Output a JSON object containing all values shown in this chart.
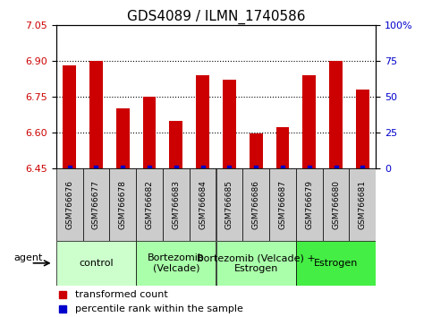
{
  "title": "GDS4089 / ILMN_1740586",
  "samples": [
    "GSM766676",
    "GSM766677",
    "GSM766678",
    "GSM766682",
    "GSM766683",
    "GSM766684",
    "GSM766685",
    "GSM766686",
    "GSM766687",
    "GSM766679",
    "GSM766680",
    "GSM766681"
  ],
  "transformed_count": [
    6.88,
    6.9,
    6.7,
    6.75,
    6.65,
    6.84,
    6.82,
    6.595,
    6.62,
    6.84,
    6.9,
    6.78
  ],
  "percentile_rank": [
    0.42,
    0.45,
    0.27,
    0.31,
    0.27,
    0.38,
    0.35,
    0.27,
    0.35,
    0.38,
    0.42,
    0.34
  ],
  "ymin": 6.45,
  "ymax": 7.05,
  "yticks_left": [
    6.45,
    6.6,
    6.75,
    6.9,
    7.05
  ],
  "yticks_right": [
    0,
    25,
    50,
    75,
    100
  ],
  "group_labels": [
    "control",
    "Bortezomib\n(Velcade)",
    "Bortezomib (Velcade) +\nEstrogen",
    "Estrogen"
  ],
  "group_starts": [
    0,
    3,
    6,
    9
  ],
  "group_ends": [
    3,
    6,
    9,
    12
  ],
  "group_colors": [
    "#ccffcc",
    "#aaffaa",
    "#aaffaa",
    "#44ee44"
  ],
  "bar_color": "#cc0000",
  "dot_color": "#0000cc",
  "bar_width": 0.5,
  "legend_bar_label": "transformed count",
  "legend_dot_label": "percentile rank within the sample",
  "agent_label": "agent",
  "left_tick_color": "#cc0000",
  "right_tick_color": "#0000cc",
  "sample_box_color": "#cccccc",
  "title_fontsize": 11,
  "tick_fontsize": 8,
  "sample_fontsize": 6.5,
  "group_fontsize": 8,
  "legend_fontsize": 8
}
